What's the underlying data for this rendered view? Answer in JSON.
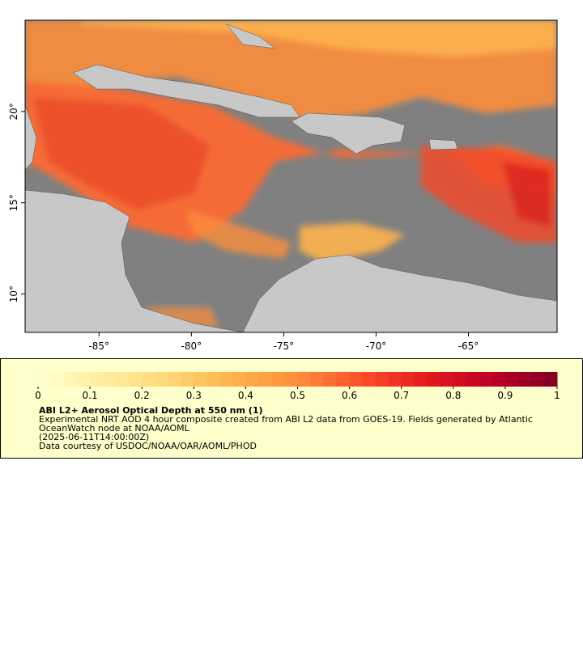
{
  "map": {
    "xlim": [
      -89,
      -60.2
    ],
    "ylim": [
      7.9,
      25
    ],
    "xticks": [
      {
        "value": -85,
        "label": "-85°"
      },
      {
        "value": -80,
        "label": "-80°"
      },
      {
        "value": -75,
        "label": "-75°"
      },
      {
        "value": -70,
        "label": "-70°"
      },
      {
        "value": -65,
        "label": "-65°"
      }
    ],
    "yticks": [
      {
        "value": 10,
        "label": "10°"
      },
      {
        "value": 15,
        "label": "15°"
      },
      {
        "value": 20,
        "label": "20°"
      }
    ]
  },
  "legend": {
    "clim": [
      0,
      1
    ],
    "ticks": [
      0,
      0.1,
      0.2,
      0.3,
      0.4,
      0.5,
      0.6,
      0.7,
      0.8,
      0.9,
      1
    ],
    "title": "ABI L2+ Aerosol Optical Depth at 550 nm (1)",
    "lines": [
      "Experimental NRT AOD 4 hour composite created from ABI L2 data from GOES-19. Fields generated by Atlantic",
      "OceanWatch node at NOAA/AOML",
      "(2025-06-11T14:00:00Z)",
      "Data courtesy of USDOC/NOAA/OAR/AOML/PHOD"
    ]
  }
}
